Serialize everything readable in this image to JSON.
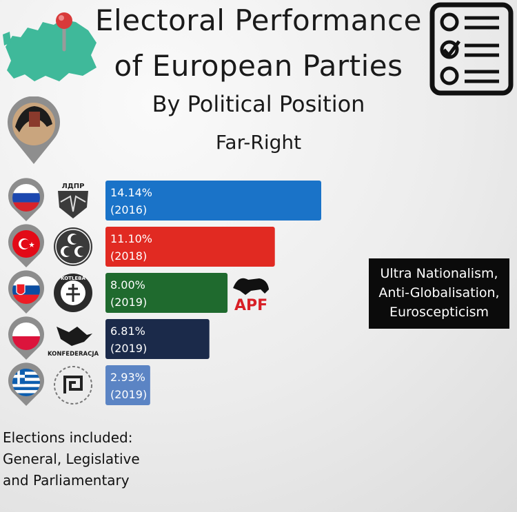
{
  "header": {
    "title_line1": "Electoral Performance",
    "title_line2": "of European Parties",
    "subtitle": "By Political Position",
    "category": "Far-Right"
  },
  "chart_data": {
    "type": "bar",
    "orientation": "horizontal",
    "categories": [
      "Russia",
      "Turkey",
      "Slovakia",
      "Poland",
      "Greece"
    ],
    "values": [
      14.14,
      11.1,
      8.0,
      6.81,
      2.93
    ],
    "years": [
      "(2016)",
      "(2018)",
      "(2019)",
      "(2019)",
      "(2019)"
    ],
    "value_labels": [
      "14.14%",
      "11.10%",
      "8.00%",
      "6.81%",
      "2.93%"
    ],
    "party_logos": [
      "ldpr-logo",
      "mhp-logo",
      "kotleba-logo",
      "konfederacja-logo",
      "golden-dawn-logo"
    ],
    "logo_texts": [
      "ЛДПР",
      "",
      "KOTLEBA",
      "KONFEDERACJA",
      ""
    ],
    "flag_icons": [
      "russia-flag-icon",
      "turkey-flag-icon",
      "slovakia-flag-icon",
      "poland-flag-icon",
      "greece-flag-icon"
    ],
    "colors": [
      "#1a73c8",
      "#e12a22",
      "#1f6a2e",
      "#1b2a4a",
      "#5b84c4"
    ],
    "extra_logo_text": "APF",
    "xlim": [
      0,
      15
    ]
  },
  "tags": [
    "Ultra Nationalism,",
    "Anti-Globalisation,",
    "Euroscepticism"
  ],
  "footnote": {
    "lines": [
      "Elections included:",
      "General, Legislative",
      "and Parliamentary"
    ]
  },
  "icons": {
    "map": "europe-map-pin-icon",
    "checklist": "checklist-icon",
    "portrait_pin": "portrait-pin-icon"
  }
}
